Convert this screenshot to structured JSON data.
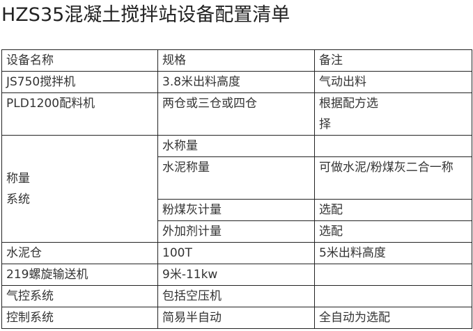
{
  "title": "HZS35混凝土搅拌站设备配置清单",
  "table": {
    "headers": [
      "设备名称",
      "规格",
      "备注"
    ],
    "rows": [
      {
        "name": "JS750搅拌机",
        "spec": "3.8米出料高度",
        "note": "气动出料"
      },
      {
        "name": "PLD1200配料机",
        "spec": "两仓或三仓或四仓",
        "note": "根据配方选择"
      },
      {
        "name": "称量系统",
        "sub": [
          {
            "spec": "水称量",
            "note": ""
          },
          {
            "spec": "水泥称量",
            "note": "可做水泥/粉煤灰二合一称"
          },
          {
            "spec": "粉煤灰计量",
            "note": "选配"
          },
          {
            "spec": "外加剂计量",
            "note": "选配"
          }
        ]
      },
      {
        "name": "水泥仓",
        "spec": "100T",
        "note": "5米出料高度"
      },
      {
        "name": "219螺旋输送机",
        "spec": "9米-11kw",
        "note": ""
      },
      {
        "name": "气控系统",
        "spec": "包括空压机",
        "note": ""
      },
      {
        "name": "控制系统",
        "spec": "简易半自动",
        "note": "全自动为选配"
      }
    ]
  }
}
